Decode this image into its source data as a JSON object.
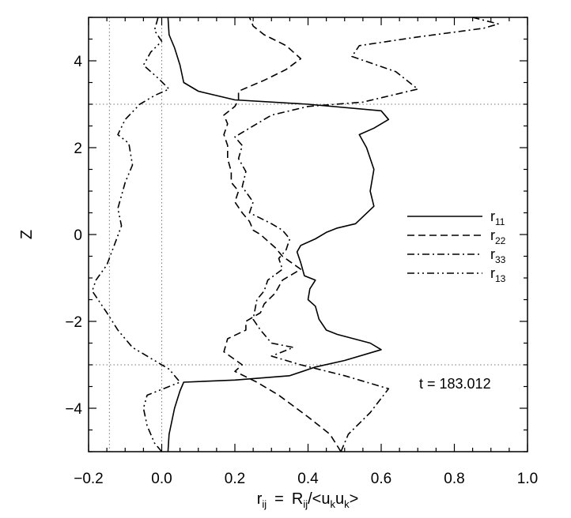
{
  "chart_data": {
    "type": "line",
    "xlabel_base": "r",
    "xlabel_base_sub": "ij",
    "xlabel_eq": "=",
    "xlabel_R": "R",
    "xlabel_R_sub": "ij",
    "xlabel_den": "/<u",
    "xlabel_den_sub1": "k",
    "xlabel_u2": "u",
    "xlabel_den_sub2": "k",
    "xlabel_close": ">",
    "ylabel": "Z",
    "xlim": [
      -0.2,
      1.0
    ],
    "ylim": [
      -5,
      5
    ],
    "x_ticks": [
      -0.2,
      0.0,
      0.2,
      0.4,
      0.6,
      0.8,
      1.0
    ],
    "x_tick_labels": [
      "−0.2",
      "0.0",
      "0.2",
      "0.4",
      "0.6",
      "0.8",
      "1.0"
    ],
    "y_ticks": [
      -4,
      -2,
      0,
      2,
      4
    ],
    "y_tick_labels": [
      "−4",
      "−2",
      "0",
      "2",
      "4"
    ],
    "reference_lines": {
      "vertical": [
        -0.143,
        0.0
      ],
      "horizontal": [
        3.0,
        -3.0
      ]
    },
    "annotation": "t = 183.012",
    "legend_position": "right",
    "series": [
      {
        "name": "r",
        "name_sub": "11",
        "style": "solid",
        "points": [
          [
            0.017,
            -5.0
          ],
          [
            0.02,
            -4.6
          ],
          [
            0.035,
            -4.0
          ],
          [
            0.05,
            -3.6
          ],
          [
            0.06,
            -3.4
          ],
          [
            0.2,
            -3.35
          ],
          [
            0.35,
            -3.25
          ],
          [
            0.42,
            -3.05
          ],
          [
            0.5,
            -2.9
          ],
          [
            0.6,
            -2.65
          ],
          [
            0.57,
            -2.5
          ],
          [
            0.48,
            -2.3
          ],
          [
            0.45,
            -2.2
          ],
          [
            0.43,
            -1.95
          ],
          [
            0.42,
            -1.65
          ],
          [
            0.4,
            -1.5
          ],
          [
            0.405,
            -1.25
          ],
          [
            0.42,
            -1.05
          ],
          [
            0.39,
            -0.95
          ],
          [
            0.38,
            -0.65
          ],
          [
            0.37,
            -0.4
          ],
          [
            0.38,
            -0.25
          ],
          [
            0.42,
            -0.1
          ],
          [
            0.45,
            0.05
          ],
          [
            0.48,
            0.15
          ],
          [
            0.53,
            0.25
          ],
          [
            0.58,
            0.65
          ],
          [
            0.57,
            1.0
          ],
          [
            0.58,
            1.5
          ],
          [
            0.56,
            2.0
          ],
          [
            0.54,
            2.3
          ],
          [
            0.58,
            2.45
          ],
          [
            0.62,
            2.65
          ],
          [
            0.6,
            2.85
          ],
          [
            0.4,
            3.0
          ],
          [
            0.2,
            3.1
          ],
          [
            0.1,
            3.3
          ],
          [
            0.06,
            3.5
          ],
          [
            0.05,
            3.9
          ],
          [
            0.035,
            4.3
          ],
          [
            0.02,
            4.6
          ],
          [
            0.017,
            5.0
          ]
        ]
      },
      {
        "name": "r",
        "name_sub": "22",
        "style": "dashed",
        "points": [
          [
            0.49,
            -5.0
          ],
          [
            0.46,
            -4.6
          ],
          [
            0.4,
            -4.2
          ],
          [
            0.32,
            -3.7
          ],
          [
            0.26,
            -3.4
          ],
          [
            0.2,
            -3.15
          ],
          [
            0.22,
            -3.0
          ],
          [
            0.17,
            -2.7
          ],
          [
            0.18,
            -2.4
          ],
          [
            0.23,
            -2.2
          ],
          [
            0.23,
            -2.0
          ],
          [
            0.27,
            -1.8
          ],
          [
            0.28,
            -1.6
          ],
          [
            0.31,
            -1.35
          ],
          [
            0.33,
            -1.05
          ],
          [
            0.38,
            -0.8
          ],
          [
            0.33,
            -0.5
          ],
          [
            0.31,
            -0.3
          ],
          [
            0.29,
            -0.15
          ],
          [
            0.27,
            0.0
          ],
          [
            0.25,
            0.1
          ],
          [
            0.24,
            0.3
          ],
          [
            0.22,
            0.5
          ],
          [
            0.2,
            0.75
          ],
          [
            0.21,
            1.0
          ],
          [
            0.19,
            1.2
          ],
          [
            0.19,
            1.45
          ],
          [
            0.18,
            1.75
          ],
          [
            0.18,
            2.05
          ],
          [
            0.17,
            2.3
          ],
          [
            0.18,
            2.55
          ],
          [
            0.17,
            2.75
          ],
          [
            0.2,
            2.95
          ],
          [
            0.21,
            3.1
          ],
          [
            0.21,
            3.3
          ],
          [
            0.28,
            3.55
          ],
          [
            0.34,
            3.8
          ],
          [
            0.38,
            4.05
          ],
          [
            0.34,
            4.35
          ],
          [
            0.28,
            4.6
          ],
          [
            0.25,
            4.8
          ],
          [
            0.24,
            5.0
          ]
        ]
      },
      {
        "name": "r",
        "name_sub": "33",
        "style": "dashdot",
        "points": [
          [
            0.49,
            -5.0
          ],
          [
            0.51,
            -4.6
          ],
          [
            0.57,
            -4.1
          ],
          [
            0.62,
            -3.55
          ],
          [
            0.5,
            -3.25
          ],
          [
            0.38,
            -3.0
          ],
          [
            0.3,
            -2.8
          ],
          [
            0.36,
            -2.6
          ],
          [
            0.3,
            -2.5
          ],
          [
            0.27,
            -2.2
          ],
          [
            0.25,
            -1.95
          ],
          [
            0.26,
            -1.5
          ],
          [
            0.28,
            -1.3
          ],
          [
            0.29,
            -1.05
          ],
          [
            0.33,
            -0.8
          ],
          [
            0.32,
            -0.55
          ],
          [
            0.34,
            -0.35
          ],
          [
            0.35,
            -0.1
          ],
          [
            0.33,
            0.1
          ],
          [
            0.3,
            0.25
          ],
          [
            0.24,
            0.5
          ],
          [
            0.25,
            0.75
          ],
          [
            0.22,
            1.1
          ],
          [
            0.23,
            1.45
          ],
          [
            0.21,
            1.75
          ],
          [
            0.22,
            2.05
          ],
          [
            0.2,
            2.25
          ],
          [
            0.24,
            2.45
          ],
          [
            0.3,
            2.75
          ],
          [
            0.4,
            2.95
          ],
          [
            0.55,
            3.05
          ],
          [
            0.7,
            3.35
          ],
          [
            0.64,
            3.75
          ],
          [
            0.52,
            4.1
          ],
          [
            0.54,
            4.35
          ],
          [
            0.7,
            4.55
          ],
          [
            0.88,
            4.75
          ],
          [
            0.92,
            4.85
          ],
          [
            0.85,
            5.0
          ]
        ]
      },
      {
        "name": "r",
        "name_sub": "13",
        "style": "dashdotdot",
        "points": [
          [
            0.0,
            -5.0
          ],
          [
            -0.02,
            -4.8
          ],
          [
            -0.04,
            -4.4
          ],
          [
            -0.05,
            -4.0
          ],
          [
            -0.04,
            -3.7
          ],
          [
            0.05,
            -3.4
          ],
          [
            0.02,
            -3.1
          ],
          [
            -0.02,
            -2.9
          ],
          [
            -0.08,
            -2.6
          ],
          [
            -0.12,
            -2.2
          ],
          [
            -0.15,
            -1.8
          ],
          [
            -0.19,
            -1.3
          ],
          [
            -0.18,
            -1.05
          ],
          [
            -0.15,
            -0.7
          ],
          [
            -0.13,
            -0.25
          ],
          [
            -0.11,
            0.2
          ],
          [
            -0.12,
            0.6
          ],
          [
            -0.1,
            1.2
          ],
          [
            -0.08,
            1.6
          ],
          [
            -0.09,
            2.1
          ],
          [
            -0.12,
            2.3
          ],
          [
            -0.1,
            2.65
          ],
          [
            -0.06,
            3.0
          ],
          [
            -0.02,
            3.2
          ],
          [
            0.02,
            3.35
          ],
          [
            -0.01,
            3.6
          ],
          [
            -0.05,
            3.9
          ],
          [
            -0.03,
            4.2
          ],
          [
            0.0,
            4.45
          ],
          [
            -0.02,
            4.7
          ],
          [
            -0.01,
            5.0
          ]
        ]
      }
    ]
  }
}
